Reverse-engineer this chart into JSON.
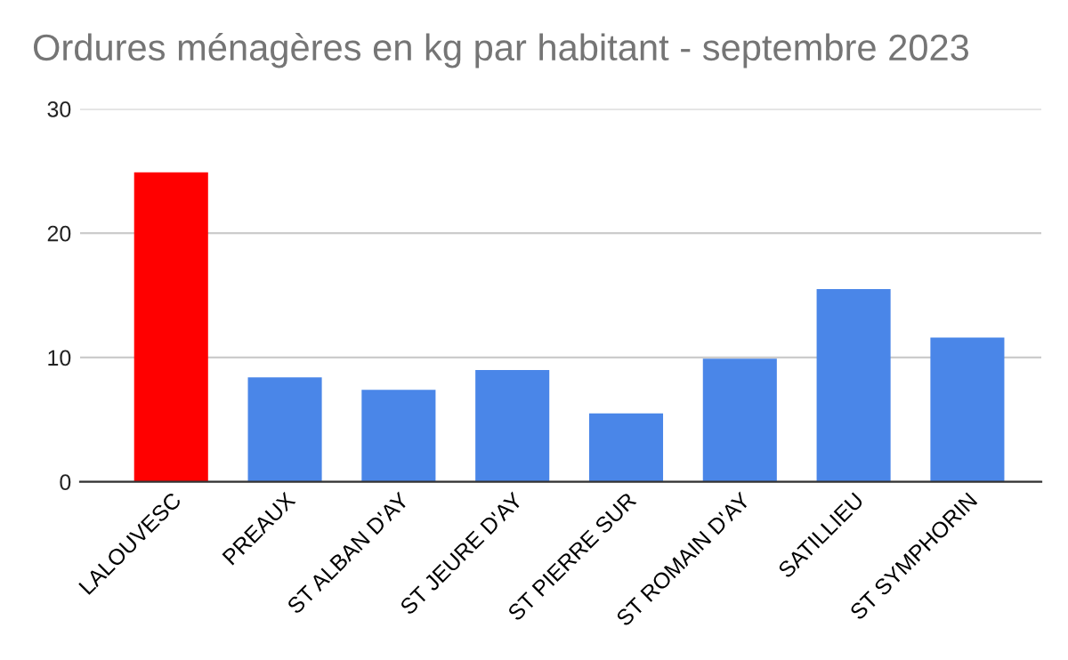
{
  "chart_data": {
    "type": "bar",
    "title": "Ordures ménagères en kg par habitant - septembre 2023",
    "categories": [
      "LALOUVESC",
      "PREAUX",
      "ST ALBAN D'AY",
      "ST JEURE D'AY",
      "ST PIERRE SUR",
      "ST ROMAIN D'AY",
      "SATILLIEU",
      "ST SYMPHORIN"
    ],
    "values": [
      24.9,
      8.4,
      7.4,
      9.0,
      5.5,
      9.9,
      15.5,
      11.6
    ],
    "colors": [
      "#ff0000",
      "#4a86e8",
      "#4a86e8",
      "#4a86e8",
      "#4a86e8",
      "#4a86e8",
      "#4a86e8",
      "#4a86e8"
    ],
    "ylim": [
      0,
      30
    ],
    "yticks": [
      0,
      10,
      20,
      30
    ],
    "grid": "y",
    "legend": false
  }
}
